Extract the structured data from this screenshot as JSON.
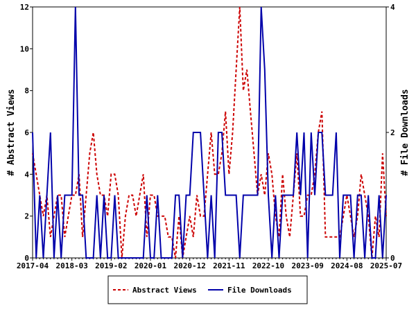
{
  "chart_data": {
    "type": "line",
    "categories": [
      "2017-04",
      null,
      null,
      null,
      null,
      null,
      null,
      null,
      null,
      null,
      null,
      "2018-03",
      null,
      null,
      null,
      null,
      null,
      null,
      null,
      null,
      null,
      null,
      "2019-02",
      null,
      null,
      null,
      null,
      null,
      null,
      null,
      null,
      null,
      null,
      "2020-01",
      null,
      null,
      null,
      null,
      null,
      null,
      null,
      null,
      null,
      null,
      "2020-12",
      null,
      null,
      null,
      null,
      null,
      null,
      null,
      null,
      null,
      null,
      "2021-11",
      null,
      null,
      null,
      null,
      null,
      null,
      null,
      null,
      null,
      null,
      "2022-10",
      null,
      null,
      null,
      null,
      null,
      null,
      null,
      null,
      null,
      null,
      "2023-09",
      null,
      null,
      null,
      null,
      null,
      null,
      null,
      null,
      null,
      null,
      "2024-08",
      null,
      null,
      null,
      null,
      null,
      null,
      null,
      null,
      null,
      null,
      "2025-07"
    ],
    "y_label": "# Abstract Views",
    "y2_label": "# File Downloads",
    "ylim": [
      0,
      12
    ],
    "yticks": [
      0,
      2,
      4,
      6,
      8,
      10,
      12
    ],
    "y2lim": [
      0,
      4
    ],
    "y2ticks": [
      0,
      2,
      4
    ],
    "series": [
      {
        "name": "Abstract Views",
        "color": "#cc0000",
        "dash": true,
        "values": [
          5,
          4,
          3,
          2,
          3,
          1,
          2,
          3,
          3,
          1,
          2,
          3,
          3,
          4,
          1,
          3,
          5,
          6,
          4,
          3,
          3,
          2,
          4,
          4,
          3,
          0,
          2,
          3,
          3,
          2,
          3,
          4,
          1,
          3,
          3,
          2,
          2,
          2,
          1,
          1,
          0,
          2,
          0,
          1,
          2,
          1,
          3,
          2,
          2,
          4,
          6,
          4,
          4,
          5,
          7,
          4,
          6,
          9,
          12,
          8,
          9,
          7,
          5,
          3,
          4,
          3,
          5,
          4,
          2,
          1,
          4,
          2,
          1,
          3,
          5,
          2,
          2,
          3,
          3,
          4,
          6,
          7,
          1,
          1,
          1,
          1,
          1,
          2,
          3,
          2,
          1,
          2,
          4,
          3,
          2,
          0,
          2,
          1,
          5,
          2
        ]
      },
      {
        "name": "File Downloads",
        "color": "#0000aa",
        "axis": "y2",
        "dash": false,
        "values": [
          2,
          0,
          1,
          0,
          1,
          2,
          0,
          1,
          0,
          1,
          1,
          1,
          4,
          1,
          1,
          0,
          0,
          0,
          1,
          0,
          1,
          0,
          0,
          1,
          0,
          0,
          0,
          0,
          0,
          0,
          0,
          0,
          1,
          0,
          0,
          1,
          0,
          0,
          0,
          0,
          1,
          1,
          0,
          1,
          1,
          2,
          2,
          2,
          1,
          0,
          1,
          0,
          2,
          2,
          1,
          1,
          1,
          1,
          0,
          1,
          1,
          1,
          1,
          1,
          4,
          3,
          1,
          0,
          1,
          0,
          1,
          1,
          1,
          1,
          2,
          1,
          2,
          0,
          2,
          1,
          2,
          2,
          1,
          1,
          1,
          2,
          0,
          1,
          1,
          1,
          0,
          1,
          1,
          0,
          1,
          0,
          0,
          1,
          0,
          1
        ]
      }
    ]
  }
}
